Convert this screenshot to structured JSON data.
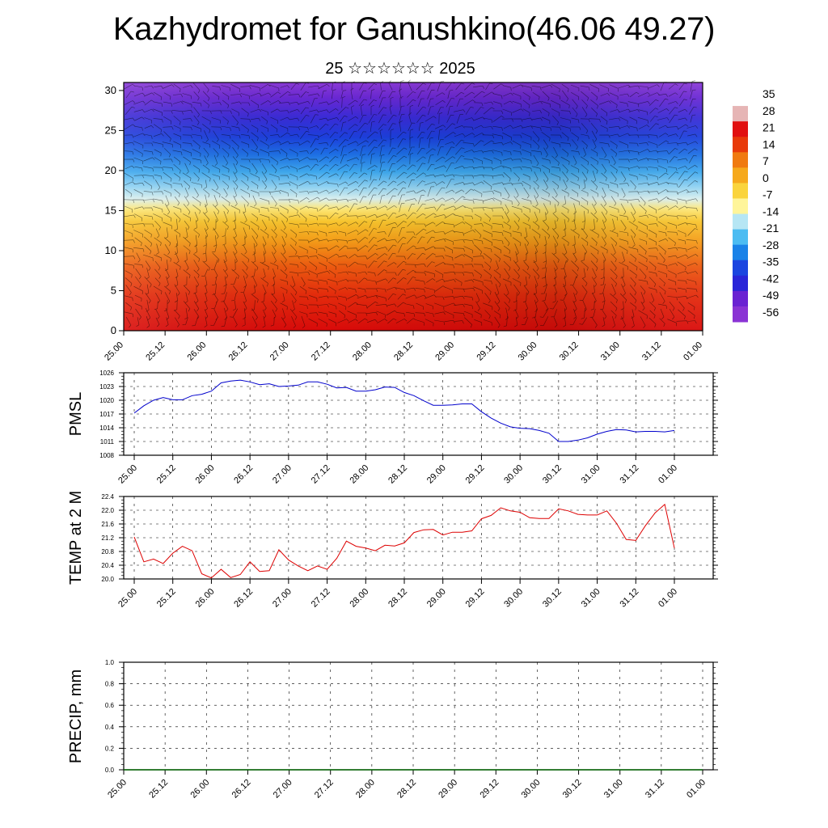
{
  "title": "Kazhydromet for Ganushkino(46.06 49.27)",
  "subtitle": "25 ☆☆☆☆☆☆ 2025",
  "chart_data": [
    {
      "type": "heatmap",
      "name": "temperature-wind-cross-section",
      "y_ticks": [
        "0",
        "5",
        "10",
        "15",
        "20",
        "25",
        "30"
      ],
      "ylim": [
        0,
        31
      ],
      "x_ticks": [
        "25.00",
        "25.12",
        "26.00",
        "26.12",
        "27.00",
        "27.12",
        "28.00",
        "28.12",
        "29.00",
        "29.12",
        "30.00",
        "30.12",
        "31.00",
        "31.12",
        "01.00"
      ],
      "colorbar_labels": [
        "35",
        "28",
        "21",
        "14",
        "7",
        "0",
        "-7",
        "-14",
        "-21",
        "-28",
        "-35",
        "-42",
        "-49",
        "-56"
      ],
      "colorbar_colors": [
        "#ffffff",
        "#e6b5b5",
        "#e11010",
        "#e83a0a",
        "#f07a10",
        "#f6a91c",
        "#fad43c",
        "#fff59a",
        "#b6e6f4",
        "#4cbcf2",
        "#1a82e8",
        "#1b45e0",
        "#2a25d8",
        "#6a22d2",
        "#8a33d4"
      ]
    },
    {
      "type": "line",
      "ylabel": "PMSL",
      "ylim": [
        1008,
        1026
      ],
      "y_ticks": [
        "1008",
        "1011",
        "1014",
        "1017",
        "1020",
        "1023",
        "1026"
      ],
      "x_ticks": [
        "25.00",
        "25.12",
        "26.00",
        "26.12",
        "27.00",
        "27.12",
        "28.00",
        "28.12",
        "29.00",
        "29.12",
        "30.00",
        "30.12",
        "31.00",
        "31.12",
        "01.00"
      ],
      "color": "#0000cc",
      "x": [
        0,
        3,
        6,
        9,
        12,
        15,
        18,
        21,
        24,
        27,
        30,
        33,
        36,
        39,
        42,
        45,
        48,
        51,
        54,
        57,
        60,
        63,
        66,
        69,
        72,
        75,
        78,
        81,
        84,
        87,
        90,
        93,
        96,
        99,
        102,
        105,
        108,
        111,
        114,
        117,
        120,
        123,
        126,
        129,
        132,
        135,
        138,
        141,
        144,
        147,
        150,
        153,
        156,
        159,
        162,
        165,
        168
      ],
      "values": [
        1017.2,
        1018.8,
        1020.0,
        1020.6,
        1020.1,
        1020.1,
        1021.0,
        1021.3,
        1022.0,
        1023.8,
        1024.2,
        1024.4,
        1024.0,
        1023.4,
        1023.6,
        1023.0,
        1023.1,
        1023.3,
        1024.0,
        1024.0,
        1023.5,
        1022.7,
        1022.8,
        1022.0,
        1022.0,
        1022.3,
        1022.9,
        1022.8,
        1021.7,
        1021.0,
        1019.9,
        1018.9,
        1018.9,
        1019.0,
        1019.2,
        1019.2,
        1017.5,
        1016.1,
        1015.0,
        1014.2,
        1013.9,
        1013.8,
        1013.4,
        1012.8,
        1011.0,
        1011.0,
        1011.3,
        1011.8,
        1012.6,
        1013.2,
        1013.6,
        1013.5,
        1013.1,
        1013.2,
        1013.2,
        1013.1,
        1013.4
      ]
    },
    {
      "type": "line",
      "ylabel": "TEMP at 2 M",
      "ylim": [
        20.0,
        22.4
      ],
      "y_ticks": [
        "20.0",
        "20.4",
        "20.8",
        "21.2",
        "21.6",
        "22.0",
        "22.4"
      ],
      "x_ticks": [
        "25.00",
        "25.12",
        "26.00",
        "26.12",
        "27.00",
        "27.12",
        "28.00",
        "28.12",
        "29.00",
        "29.12",
        "30.00",
        "30.12",
        "31.00",
        "31.12",
        "01.00"
      ],
      "color": "#dd0000",
      "x": [
        0,
        3,
        6,
        9,
        12,
        15,
        18,
        21,
        24,
        27,
        30,
        33,
        36,
        39,
        42,
        45,
        48,
        51,
        54,
        57,
        60,
        63,
        66,
        69,
        72,
        75,
        78,
        81,
        84,
        87,
        90,
        93,
        96,
        99,
        102,
        105,
        108,
        111,
        114,
        117,
        120,
        123,
        126,
        129,
        132,
        135,
        138,
        141,
        144,
        147,
        150,
        153,
        156,
        159,
        162,
        165,
        168
      ],
      "values": [
        21.22,
        20.5,
        20.58,
        20.45,
        20.75,
        20.95,
        20.82,
        20.15,
        20.03,
        20.28,
        20.04,
        20.13,
        20.5,
        20.22,
        20.24,
        20.85,
        20.55,
        20.38,
        20.24,
        20.38,
        20.28,
        20.6,
        21.1,
        20.95,
        20.9,
        20.82,
        20.98,
        20.96,
        21.05,
        21.35,
        21.43,
        21.44,
        21.28,
        21.36,
        21.36,
        21.4,
        21.75,
        21.85,
        22.07,
        21.98,
        21.94,
        21.78,
        21.76,
        21.76,
        22.04,
        21.98,
        21.88,
        21.86,
        21.86,
        21.98,
        21.62,
        21.15,
        21.12,
        21.55,
        21.92,
        22.17,
        20.9
      ]
    },
    {
      "type": "line",
      "ylabel": "PRECIP, mm",
      "ylim": [
        0.0,
        1.0
      ],
      "y_ticks": [
        "0.0",
        "0.2",
        "0.4",
        "0.6",
        "0.8",
        "1.0"
      ],
      "x_ticks": [
        "25.00",
        "25.12",
        "26.00",
        "26.12",
        "27.00",
        "27.12",
        "28.00",
        "28.12",
        "29.00",
        "29.12",
        "30.00",
        "30.12",
        "31.00",
        "31.12",
        "01.00"
      ],
      "color": "#006400",
      "x": [
        0,
        168
      ],
      "values": [
        0,
        0
      ]
    }
  ]
}
